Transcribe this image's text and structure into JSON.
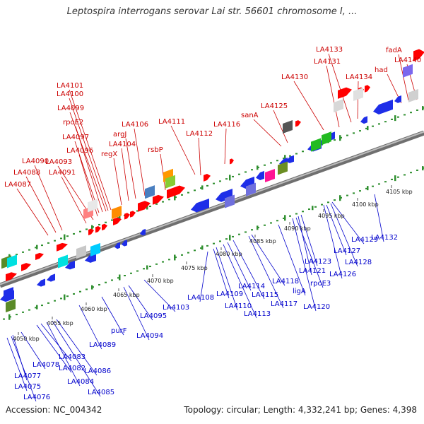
{
  "title": "Leptospira interrogans serovar Lai str. 56601 chromosome I, ...",
  "footer": {
    "accession": "Accession: NC_004342",
    "summary": "Topology: circular; Length: 4,332,241 bp; Genes: 4,398"
  },
  "colors": {
    "forward_label": "#cc0000",
    "reverse_label": "#0000cc",
    "forward_gene": "#ff0000",
    "reverse_gene": "#1e2ee8",
    "backbone": "#8c8c8c",
    "tick": "#2f8f2f"
  },
  "ruler": [
    "4050 kbp",
    "4055 kbp",
    "4060 kbp",
    "4065 kbp",
    "4070 kbp",
    "4075 kbp",
    "4080 kbp",
    "4085 kbp",
    "4090 kbp",
    "4095 kbp",
    "4100 kbp",
    "4105 kbp"
  ],
  "forward_labels": [
    "LA4087",
    "LA4088",
    "LA4090",
    "LA4091",
    "LA4093",
    "LA4096",
    "LA4097",
    "rpoE2",
    "LA4099",
    "LA4100",
    "LA4101",
    "regX",
    "LA4104",
    "argJ",
    "LA4106",
    "rsbP",
    "LA4111",
    "LA4112",
    "LA4116",
    "sanA",
    "LA4125",
    "LA4130",
    "LA4131",
    "LA4133",
    "LA4134",
    "had",
    "fadA",
    "LA4140"
  ],
  "reverse_labels": [
    "LA4075",
    "LA4076",
    "LA4077",
    "LA4078",
    "LA4082",
    "LA4083",
    "LA4084",
    "LA4085",
    "LA4086",
    "LA4089",
    "purF",
    "LA4094",
    "LA4095",
    "LA4103",
    "LA4108",
    "LA4109",
    "LA4110",
    "LA4113",
    "LA4114",
    "LA4115",
    "LA4117",
    "LA4118",
    "ligA",
    "LA4120",
    "rpoE3",
    "LA4121",
    "LA4123",
    "LA4126",
    "LA4127",
    "LA4128",
    "LA4129",
    "LA4132"
  ]
}
